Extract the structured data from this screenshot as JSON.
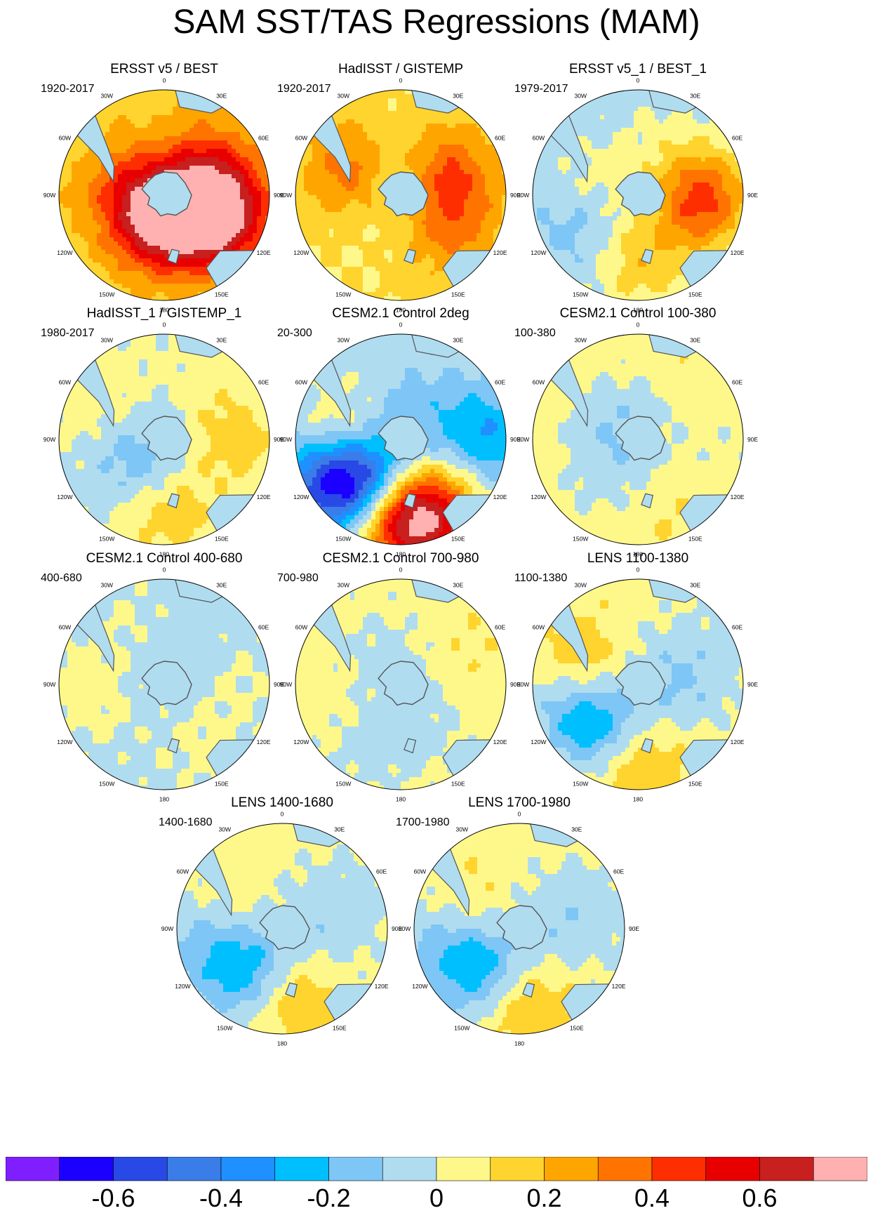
{
  "figure_title": "SAM SST/TAS Regressions (MAM)",
  "longitude_labels": [
    "0",
    "30E",
    "60E",
    "90E",
    "120E",
    "150E",
    "180",
    "150W",
    "120W",
    "90W",
    "60W",
    "30W"
  ],
  "colors": {
    "colorbar": [
      "#7f1fff",
      "#1c00ff",
      "#2949e6",
      "#3a7de8",
      "#1e90ff",
      "#00bfff",
      "#7ec6f5",
      "#b0dcf0",
      "#fef88b",
      "#ffd42e",
      "#ffa500",
      "#ff7400",
      "#ff2e00",
      "#e80000",
      "#c81f1f",
      "#ffb0b0"
    ],
    "land": "#b0dcf0",
    "coast": "#555555"
  },
  "chart_data": {
    "type": "polar-contour-panels",
    "colorbar": {
      "levels": [
        -0.7,
        -0.6,
        -0.5,
        -0.4,
        -0.3,
        -0.2,
        -0.1,
        0,
        0.1,
        0.2,
        0.3,
        0.4,
        0.5,
        0.6,
        0.7
      ],
      "tick_values": [
        -0.6,
        -0.4,
        -0.2,
        0,
        0.2,
        0.4,
        0.6
      ],
      "tick_labels": [
        "-0.6",
        "-0.4",
        "-0.2",
        "0",
        "0.2",
        "0.4",
        "0.6"
      ]
    },
    "panels": [
      {
        "title": "ERSST v5 / BEST",
        "period": "1920-2017",
        "base": 0.15,
        "blobs": [
          [
            0.62,
            110,
            0.45
          ],
          [
            0.3,
            80,
            0.26
          ],
          [
            0.3,
            150,
            0.25
          ],
          [
            0.48,
            55,
            0.22
          ],
          [
            0.3,
            300,
            0.25
          ],
          [
            0.15,
            260,
            0.15
          ],
          [
            0.2,
            210,
            0.18
          ],
          [
            0.28,
            180,
            0.22
          ],
          [
            0.15,
            0,
            -0.3
          ]
        ]
      },
      {
        "title": "HadISST / GISTEMP",
        "period": "1920-2017",
        "base": 0.1,
        "blobs": [
          [
            0.5,
            300,
            0.3
          ],
          [
            0.45,
            60,
            0.35
          ],
          [
            0.58,
            120,
            0.2
          ],
          [
            0.3,
            180,
            0.08
          ],
          [
            0.2,
            0,
            -0.25
          ],
          [
            0.25,
            220,
            -0.12
          ],
          [
            0.3,
            270,
            0.05
          ]
        ]
      },
      {
        "title": "ERSST v5_1 / BEST_1",
        "period": "1979-2017",
        "base": -0.05,
        "blobs": [
          [
            0.62,
            90,
            0.35
          ],
          [
            0.55,
            110,
            0.22
          ],
          [
            0.62,
            180,
            0.25
          ],
          [
            0.5,
            240,
            -0.22
          ],
          [
            0.35,
            270,
            0.2
          ],
          [
            0.4,
            130,
            -0.1
          ],
          [
            0.3,
            0,
            -0.05
          ],
          [
            0.55,
            20,
            0.08
          ]
        ]
      },
      {
        "title": "HadISST_1 / GISTEMP_1",
        "period": "1980-2017",
        "base": 0.0,
        "blobs": [
          [
            0.65,
            180,
            0.2
          ],
          [
            0.65,
            90,
            0.15
          ],
          [
            0.35,
            220,
            -0.2
          ],
          [
            0.7,
            300,
            0.08
          ],
          [
            0.2,
            0,
            -0.05
          ],
          [
            0.5,
            30,
            0.05
          ]
        ]
      },
      {
        "title": "CESM2.1 Control 2deg",
        "period": "20-300",
        "base": -0.05,
        "blobs": [
          [
            0.5,
            270,
            0.32
          ],
          [
            0.5,
            225,
            -0.6
          ],
          [
            0.82,
            240,
            -0.4
          ],
          [
            0.75,
            180,
            0.55
          ],
          [
            0.72,
            90,
            -0.3
          ],
          [
            0.55,
            130,
            0.15
          ],
          [
            0.2,
            0,
            -0.1
          ],
          [
            0.85,
            160,
            0.4
          ]
        ]
      },
      {
        "title": "CESM2.1 Control 100-380",
        "period": "100-380",
        "base": 0.06,
        "blobs": [
          [
            0.45,
            220,
            -0.1
          ],
          [
            0.35,
            300,
            -0.06
          ],
          [
            0.8,
            90,
            -0.05
          ],
          [
            0.7,
            160,
            0.05
          ],
          [
            0.2,
            0,
            -0.1
          ],
          [
            0.55,
            40,
            0.04
          ]
        ]
      },
      {
        "title": "CESM2.1 Control 400-680",
        "period": "400-680",
        "base": -0.04,
        "blobs": [
          [
            0.7,
            90,
            0.05
          ],
          [
            0.6,
            330,
            0.06
          ],
          [
            0.6,
            250,
            0.04
          ],
          [
            0.85,
            270,
            0.06
          ],
          [
            0.7,
            150,
            0.06
          ],
          [
            0.2,
            0,
            -0.06
          ]
        ]
      },
      {
        "title": "CESM2.1 Control 700-980",
        "period": "700-980",
        "base": 0.04,
        "blobs": [
          [
            0.7,
            210,
            -0.08
          ],
          [
            0.45,
            150,
            -0.06
          ],
          [
            0.35,
            300,
            -0.05
          ],
          [
            0.55,
            260,
            0.05
          ],
          [
            0.7,
            60,
            0.06
          ],
          [
            0.2,
            0,
            -0.06
          ]
        ]
      },
      {
        "title": "LENS 1100-1380",
        "period": "1100-1380",
        "base": 0.05,
        "blobs": [
          [
            0.55,
            225,
            -0.35
          ],
          [
            0.72,
            180,
            0.2
          ],
          [
            0.5,
            290,
            0.2
          ],
          [
            0.45,
            100,
            -0.12
          ],
          [
            0.8,
            60,
            -0.06
          ],
          [
            0.2,
            0,
            -0.08
          ],
          [
            0.7,
            260,
            -0.1
          ]
        ]
      },
      {
        "title": "LENS 1400-1680",
        "period": "1400-1680",
        "base": 0.04,
        "blobs": [
          [
            0.55,
            225,
            -0.33
          ],
          [
            0.7,
            170,
            0.18
          ],
          [
            0.45,
            300,
            0.12
          ],
          [
            0.5,
            100,
            -0.08
          ],
          [
            0.82,
            60,
            -0.05
          ],
          [
            0.2,
            0,
            -0.08
          ],
          [
            0.8,
            270,
            -0.12
          ]
        ]
      },
      {
        "title": "LENS 1700-1980",
        "period": "1700-1980",
        "base": 0.04,
        "blobs": [
          [
            0.55,
            225,
            -0.33
          ],
          [
            0.72,
            175,
            0.2
          ],
          [
            0.45,
            300,
            0.14
          ],
          [
            0.5,
            100,
            -0.08
          ],
          [
            0.82,
            70,
            -0.06
          ],
          [
            0.2,
            0,
            -0.08
          ],
          [
            0.82,
            265,
            -0.12
          ]
        ]
      }
    ]
  }
}
